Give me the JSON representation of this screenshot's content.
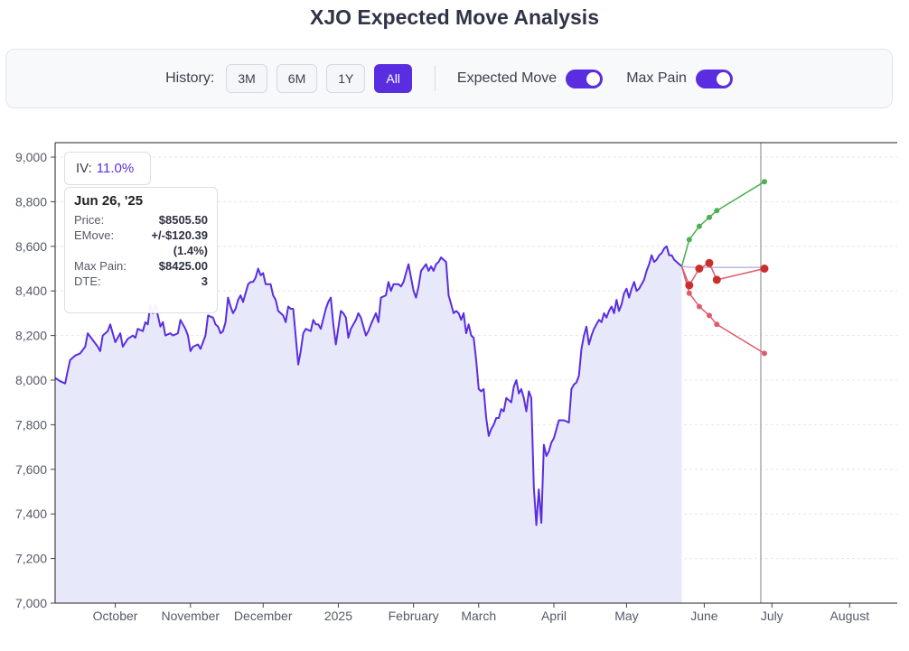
{
  "title": "XJO Expected Move Analysis",
  "controls": {
    "history_label": "History:",
    "history_buttons": [
      {
        "label": "3M",
        "active": false
      },
      {
        "label": "6M",
        "active": false
      },
      {
        "label": "1Y",
        "active": false
      },
      {
        "label": "All",
        "active": true
      }
    ],
    "expected_move_label": "Expected Move",
    "expected_move_on": true,
    "max_pain_label": "Max Pain",
    "max_pain_on": true
  },
  "iv": {
    "label": "IV:",
    "value": "11.0%"
  },
  "tooltip": {
    "date": "Jun 26, '25",
    "price_label": "Price:",
    "price": "$8505.50",
    "emove_label": "EMove:",
    "emove": "+/-$120.39",
    "emove_pct": "(1.4%)",
    "maxpain_label": "Max Pain:",
    "maxpain": "$8425.00",
    "dte_label": "DTE:",
    "dte": "3"
  },
  "colors": {
    "price_line": "#5a2ee0",
    "price_fill": "#e8e8fb",
    "upper": "#4caf50",
    "lower": "#e05a6e",
    "maxpain": "#c9302c",
    "flat": "#b8b8de",
    "accent": "#5a2ee0"
  },
  "chart_data": {
    "type": "line",
    "title": "XJO Expected Move Analysis",
    "ylim": [
      7000,
      9000
    ],
    "yticks": [
      7000,
      7200,
      7400,
      7600,
      7800,
      8000,
      8200,
      8400,
      8600,
      8800,
      9000
    ],
    "xlim_days": [
      0,
      336
    ],
    "month_ticks": [
      {
        "label": "October",
        "day": 24
      },
      {
        "label": "November",
        "day": 54
      },
      {
        "label": "December",
        "day": 83
      },
      {
        "label": "2025",
        "day": 113
      },
      {
        "label": "February",
        "day": 143
      },
      {
        "label": "March",
        "day": 169
      },
      {
        "label": "April",
        "day": 199
      },
      {
        "label": "May",
        "day": 228
      },
      {
        "label": "June",
        "day": 259
      },
      {
        "label": "July",
        "day": 286
      },
      {
        "label": "August",
        "day": 317
      }
    ],
    "current_day": 283,
    "price_series": [
      [
        0,
        8010
      ],
      [
        2,
        7995
      ],
      [
        4,
        7985
      ],
      [
        5,
        8040
      ],
      [
        6,
        8090
      ],
      [
        8,
        8110
      ],
      [
        10,
        8120
      ],
      [
        12,
        8150
      ],
      [
        13,
        8210
      ],
      [
        15,
        8180
      ],
      [
        17,
        8150
      ],
      [
        18,
        8130
      ],
      [
        19,
        8200
      ],
      [
        21,
        8220
      ],
      [
        22,
        8250
      ],
      [
        24,
        8170
      ],
      [
        26,
        8210
      ],
      [
        27,
        8150
      ],
      [
        29,
        8185
      ],
      [
        31,
        8200
      ],
      [
        32,
        8190
      ],
      [
        33,
        8230
      ],
      [
        35,
        8220
      ],
      [
        36,
        8260
      ],
      [
        37,
        8250
      ],
      [
        38,
        8340
      ],
      [
        39,
        8300
      ],
      [
        40,
        8340
      ],
      [
        41,
        8290
      ],
      [
        42,
        8240
      ],
      [
        43,
        8260
      ],
      [
        44,
        8200
      ],
      [
        46,
        8210
      ],
      [
        47,
        8200
      ],
      [
        49,
        8210
      ],
      [
        50,
        8270
      ],
      [
        52,
        8230
      ],
      [
        53,
        8200
      ],
      [
        54,
        8130
      ],
      [
        55,
        8150
      ],
      [
        57,
        8160
      ],
      [
        58,
        8140
      ],
      [
        60,
        8200
      ],
      [
        61,
        8290
      ],
      [
        63,
        8280
      ],
      [
        64,
        8250
      ],
      [
        65,
        8240
      ],
      [
        66,
        8210
      ],
      [
        67,
        8220
      ],
      [
        68,
        8260
      ],
      [
        69,
        8370
      ],
      [
        70,
        8330
      ],
      [
        71,
        8300
      ],
      [
        72,
        8320
      ],
      [
        73,
        8360
      ],
      [
        74,
        8380
      ],
      [
        75,
        8350
      ],
      [
        77,
        8430
      ],
      [
        78,
        8440
      ],
      [
        79,
        8440
      ],
      [
        80,
        8460
      ],
      [
        81,
        8500
      ],
      [
        82,
        8470
      ],
      [
        83,
        8480
      ],
      [
        84,
        8430
      ],
      [
        86,
        8430
      ],
      [
        87,
        8380
      ],
      [
        88,
        8360
      ],
      [
        89,
        8310
      ],
      [
        91,
        8290
      ],
      [
        92,
        8260
      ],
      [
        93,
        8330
      ],
      [
        94,
        8320
      ],
      [
        95,
        8320
      ],
      [
        97,
        8070
      ],
      [
        98,
        8130
      ],
      [
        99,
        8210
      ],
      [
        100,
        8230
      ],
      [
        102,
        8220
      ],
      [
        103,
        8270
      ],
      [
        104,
        8250
      ],
      [
        105,
        8250
      ],
      [
        106,
        8230
      ],
      [
        108,
        8320
      ],
      [
        109,
        8350
      ],
      [
        110,
        8370
      ],
      [
        111,
        8250
      ],
      [
        112,
        8160
      ],
      [
        114,
        8310
      ],
      [
        115,
        8300
      ],
      [
        116,
        8280
      ],
      [
        117,
        8190
      ],
      [
        118,
        8230
      ],
      [
        120,
        8270
      ],
      [
        121,
        8300
      ],
      [
        122,
        8280
      ],
      [
        124,
        8200
      ],
      [
        125,
        8220
      ],
      [
        126,
        8250
      ],
      [
        128,
        8300
      ],
      [
        129,
        8260
      ],
      [
        130,
        8370
      ],
      [
        132,
        8380
      ],
      [
        133,
        8440
      ],
      [
        134,
        8400
      ],
      [
        135,
        8430
      ],
      [
        136,
        8430
      ],
      [
        137,
        8430
      ],
      [
        138,
        8420
      ],
      [
        139,
        8440
      ],
      [
        140,
        8480
      ],
      [
        141,
        8520
      ],
      [
        142,
        8460
      ],
      [
        143,
        8400
      ],
      [
        144,
        8370
      ],
      [
        145,
        8420
      ],
      [
        146,
        8490
      ],
      [
        148,
        8520
      ],
      [
        149,
        8490
      ],
      [
        150,
        8510
      ],
      [
        151,
        8490
      ],
      [
        152,
        8520
      ],
      [
        153,
        8530
      ],
      [
        154,
        8550
      ],
      [
        155,
        8540
      ],
      [
        156,
        8530
      ],
      [
        157,
        8380
      ],
      [
        158,
        8340
      ],
      [
        159,
        8300
      ],
      [
        160,
        8310
      ],
      [
        161,
        8300
      ],
      [
        162,
        8270
      ],
      [
        163,
        8300
      ],
      [
        164,
        8210
      ],
      [
        165,
        8250
      ],
      [
        166,
        8200
      ],
      [
        167,
        8190
      ],
      [
        168,
        8090
      ],
      [
        169,
        7960
      ],
      [
        170,
        7950
      ],
      [
        171,
        7960
      ],
      [
        172,
        7830
      ],
      [
        173,
        7750
      ],
      [
        174,
        7780
      ],
      [
        175,
        7800
      ],
      [
        176,
        7830
      ],
      [
        177,
        7830
      ],
      [
        178,
        7870
      ],
      [
        179,
        7860
      ],
      [
        180,
        7920
      ],
      [
        181,
        7910
      ],
      [
        182,
        7900
      ],
      [
        183,
        7970
      ],
      [
        184,
        8000
      ],
      [
        185,
        7940
      ],
      [
        186,
        7960
      ],
      [
        187,
        7920
      ],
      [
        188,
        7860
      ],
      [
        189,
        7950
      ],
      [
        190,
        7920
      ],
      [
        191,
        7520
      ],
      [
        192,
        7350
      ],
      [
        193,
        7510
      ],
      [
        194,
        7360
      ],
      [
        195,
        7710
      ],
      [
        196,
        7660
      ],
      [
        197,
        7680
      ],
      [
        198,
        7720
      ],
      [
        199,
        7740
      ],
      [
        200,
        7780
      ],
      [
        201,
        7820
      ],
      [
        202,
        7820
      ],
      [
        203,
        7820
      ],
      [
        205,
        7810
      ],
      [
        206,
        7960
      ],
      [
        207,
        7980
      ],
      [
        208,
        7990
      ],
      [
        209,
        8020
      ],
      [
        210,
        8140
      ],
      [
        211,
        8200
      ],
      [
        212,
        8240
      ],
      [
        213,
        8160
      ],
      [
        214,
        8200
      ],
      [
        215,
        8230
      ],
      [
        216,
        8250
      ],
      [
        217,
        8270
      ],
      [
        218,
        8260
      ],
      [
        219,
        8300
      ],
      [
        220,
        8280
      ],
      [
        221,
        8310
      ],
      [
        222,
        8330
      ],
      [
        223,
        8300
      ],
      [
        224,
        8360
      ],
      [
        225,
        8310
      ],
      [
        226,
        8340
      ],
      [
        227,
        8390
      ],
      [
        228,
        8410
      ],
      [
        229,
        8370
      ],
      [
        230,
        8410
      ],
      [
        231,
        8440
      ],
      [
        232,
        8400
      ],
      [
        233,
        8410
      ],
      [
        234,
        8430
      ],
      [
        235,
        8450
      ],
      [
        236,
        8490
      ],
      [
        237,
        8520
      ],
      [
        238,
        8560
      ],
      [
        239,
        8530
      ],
      [
        240,
        8540
      ],
      [
        241,
        8560
      ],
      [
        242,
        8570
      ],
      [
        243,
        8590
      ],
      [
        244,
        8600
      ],
      [
        245,
        8560
      ],
      [
        246,
        8560
      ],
      [
        247,
        8540
      ],
      [
        248,
        8530
      ],
      [
        249,
        8520
      ],
      [
        250,
        8510
      ]
    ],
    "upper_band": [
      [
        250,
        8550
      ],
      [
        253,
        8630
      ],
      [
        255,
        8670
      ],
      [
        257,
        8680
      ],
      [
        259,
        8700
      ],
      [
        262,
        8720
      ],
      [
        270,
        8780
      ],
      [
        276,
        8840
      ],
      [
        283,
        8900
      ]
    ],
    "upper_points": [
      [
        253,
        8630
      ],
      [
        257,
        8690
      ],
      [
        261,
        8730
      ],
      [
        264,
        8760
      ],
      [
        283,
        8890
      ]
    ],
    "lower_points": [
      [
        253,
        8390
      ],
      [
        257,
        8330
      ],
      [
        261,
        8290
      ],
      [
        264,
        8250
      ],
      [
        283,
        8120
      ]
    ],
    "maxpain_points": [
      [
        253,
        8425
      ],
      [
        257,
        8500
      ],
      [
        261,
        8525
      ],
      [
        264,
        8450
      ],
      [
        283,
        8500
      ]
    ],
    "flat_line": [
      [
        250,
        8510
      ],
      [
        255,
        8505
      ],
      [
        262,
        8505
      ],
      [
        283,
        8505
      ]
    ]
  }
}
